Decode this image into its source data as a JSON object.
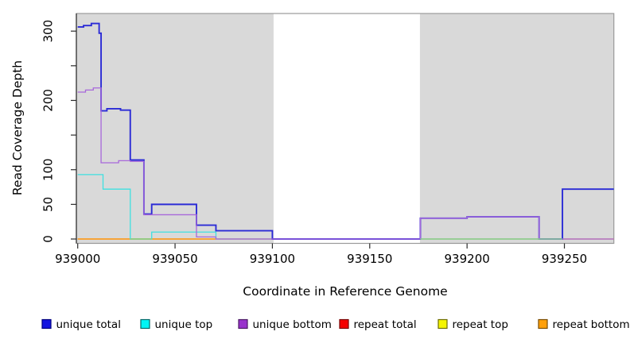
{
  "chart_data": {
    "type": "line",
    "subtype": "step-coverage",
    "title": "",
    "xlabel": "Coordinate in Reference Genome",
    "ylabel": "Read Coverage Depth",
    "xlim": [
      938999,
      939276
    ],
    "ylim": [
      0,
      325
    ],
    "grid": false,
    "legend_position": "bottom",
    "plot_bg_color": "#ffffff",
    "shaded_region_color": "#d9d9d9",
    "shaded_regions": [
      [
        938999,
        939100.6
      ],
      [
        939175.8,
        939276
      ]
    ],
    "x_ticks": [
      {
        "v": 939000,
        "label": "939000"
      },
      {
        "v": 939050,
        "label": "939050"
      },
      {
        "v": 939100,
        "label": "939100"
      },
      {
        "v": 939150,
        "label": "939150"
      },
      {
        "v": 939200,
        "label": "939200"
      },
      {
        "v": 939250,
        "label": "939250"
      }
    ],
    "y_ticks": [
      {
        "v": 0,
        "label": "0"
      },
      {
        "v": 50,
        "label": "50"
      },
      {
        "v": 100,
        "label": "100"
      },
      {
        "v": 150,
        "label": ""
      },
      {
        "v": 200,
        "label": "200"
      },
      {
        "v": 250,
        "label": ""
      },
      {
        "v": 300,
        "label": "300"
      }
    ],
    "series": [
      {
        "name": "unique total",
        "color": "#2b2bd6",
        "w": 1.9,
        "points": [
          [
            939000,
            306
          ],
          [
            939003,
            308
          ],
          [
            939007,
            311
          ],
          [
            939011,
            297
          ],
          [
            939012,
            185
          ],
          [
            939015,
            188
          ],
          [
            939022,
            186
          ],
          [
            939027,
            114
          ],
          [
            939034,
            36
          ],
          [
            939038,
            50
          ],
          [
            939061,
            20
          ],
          [
            939071,
            12
          ],
          [
            939100,
            0
          ],
          [
            939176,
            30
          ],
          [
            939200,
            32
          ],
          [
            939237,
            0
          ],
          [
            939249,
            72
          ]
        ]
      },
      {
        "name": "unique top",
        "color": "#3fe0e0",
        "w": 1.3,
        "points": [
          [
            939000,
            93
          ],
          [
            939013,
            72
          ],
          [
            939027,
            0
          ],
          [
            939038,
            10
          ],
          [
            939071,
            0
          ],
          [
            939249,
            72
          ]
        ]
      },
      {
        "name": "unique bottom",
        "color": "#a868da",
        "w": 1.3,
        "points": [
          [
            939000,
            212
          ],
          [
            939004,
            215
          ],
          [
            939008,
            218
          ],
          [
            939012,
            110
          ],
          [
            939021,
            113
          ],
          [
            939027,
            112
          ],
          [
            939034,
            35
          ],
          [
            939061,
            3
          ],
          [
            939071,
            0
          ],
          [
            939176,
            30
          ],
          [
            939200,
            32
          ],
          [
            939237,
            0
          ]
        ]
      },
      {
        "name": "repeat total",
        "color": "#d85a78",
        "w": 1.3,
        "points": [
          [
            939000,
            0
          ]
        ]
      },
      {
        "name": "repeat top",
        "color": "#f0f000",
        "w": 1.2,
        "points": [
          [
            939000,
            0
          ]
        ]
      },
      {
        "name": "repeat bottom",
        "color": "#ff9c1a",
        "w": 1.5,
        "points": [
          [
            939000,
            0
          ]
        ],
        "x_end": 939071
      }
    ],
    "draw_order": [
      4,
      3,
      5,
      1,
      0,
      2
    ],
    "baseline_overlays": [
      {
        "x1": 939027,
        "x2": 939038,
        "y": 0,
        "color": "#86d086"
      },
      {
        "x1": 939176,
        "x2": 939249,
        "y": 0,
        "color": "#8fd08f"
      }
    ],
    "legend": [
      {
        "label": "unique total",
        "fill": "#1414e0",
        "border": "#000080"
      },
      {
        "label": "unique top",
        "fill": "#00f5f5",
        "border": "#006868"
      },
      {
        "label": "unique bottom",
        "fill": "#9933cc",
        "border": "#4d1a66"
      },
      {
        "label": "repeat total",
        "fill": "#f50000",
        "border": "#7a0000"
      },
      {
        "label": "repeat top",
        "fill": "#f5f500",
        "border": "#6e6e00"
      },
      {
        "label": "repeat bottom",
        "fill": "#ffa00a",
        "border": "#7a4d00"
      }
    ]
  }
}
